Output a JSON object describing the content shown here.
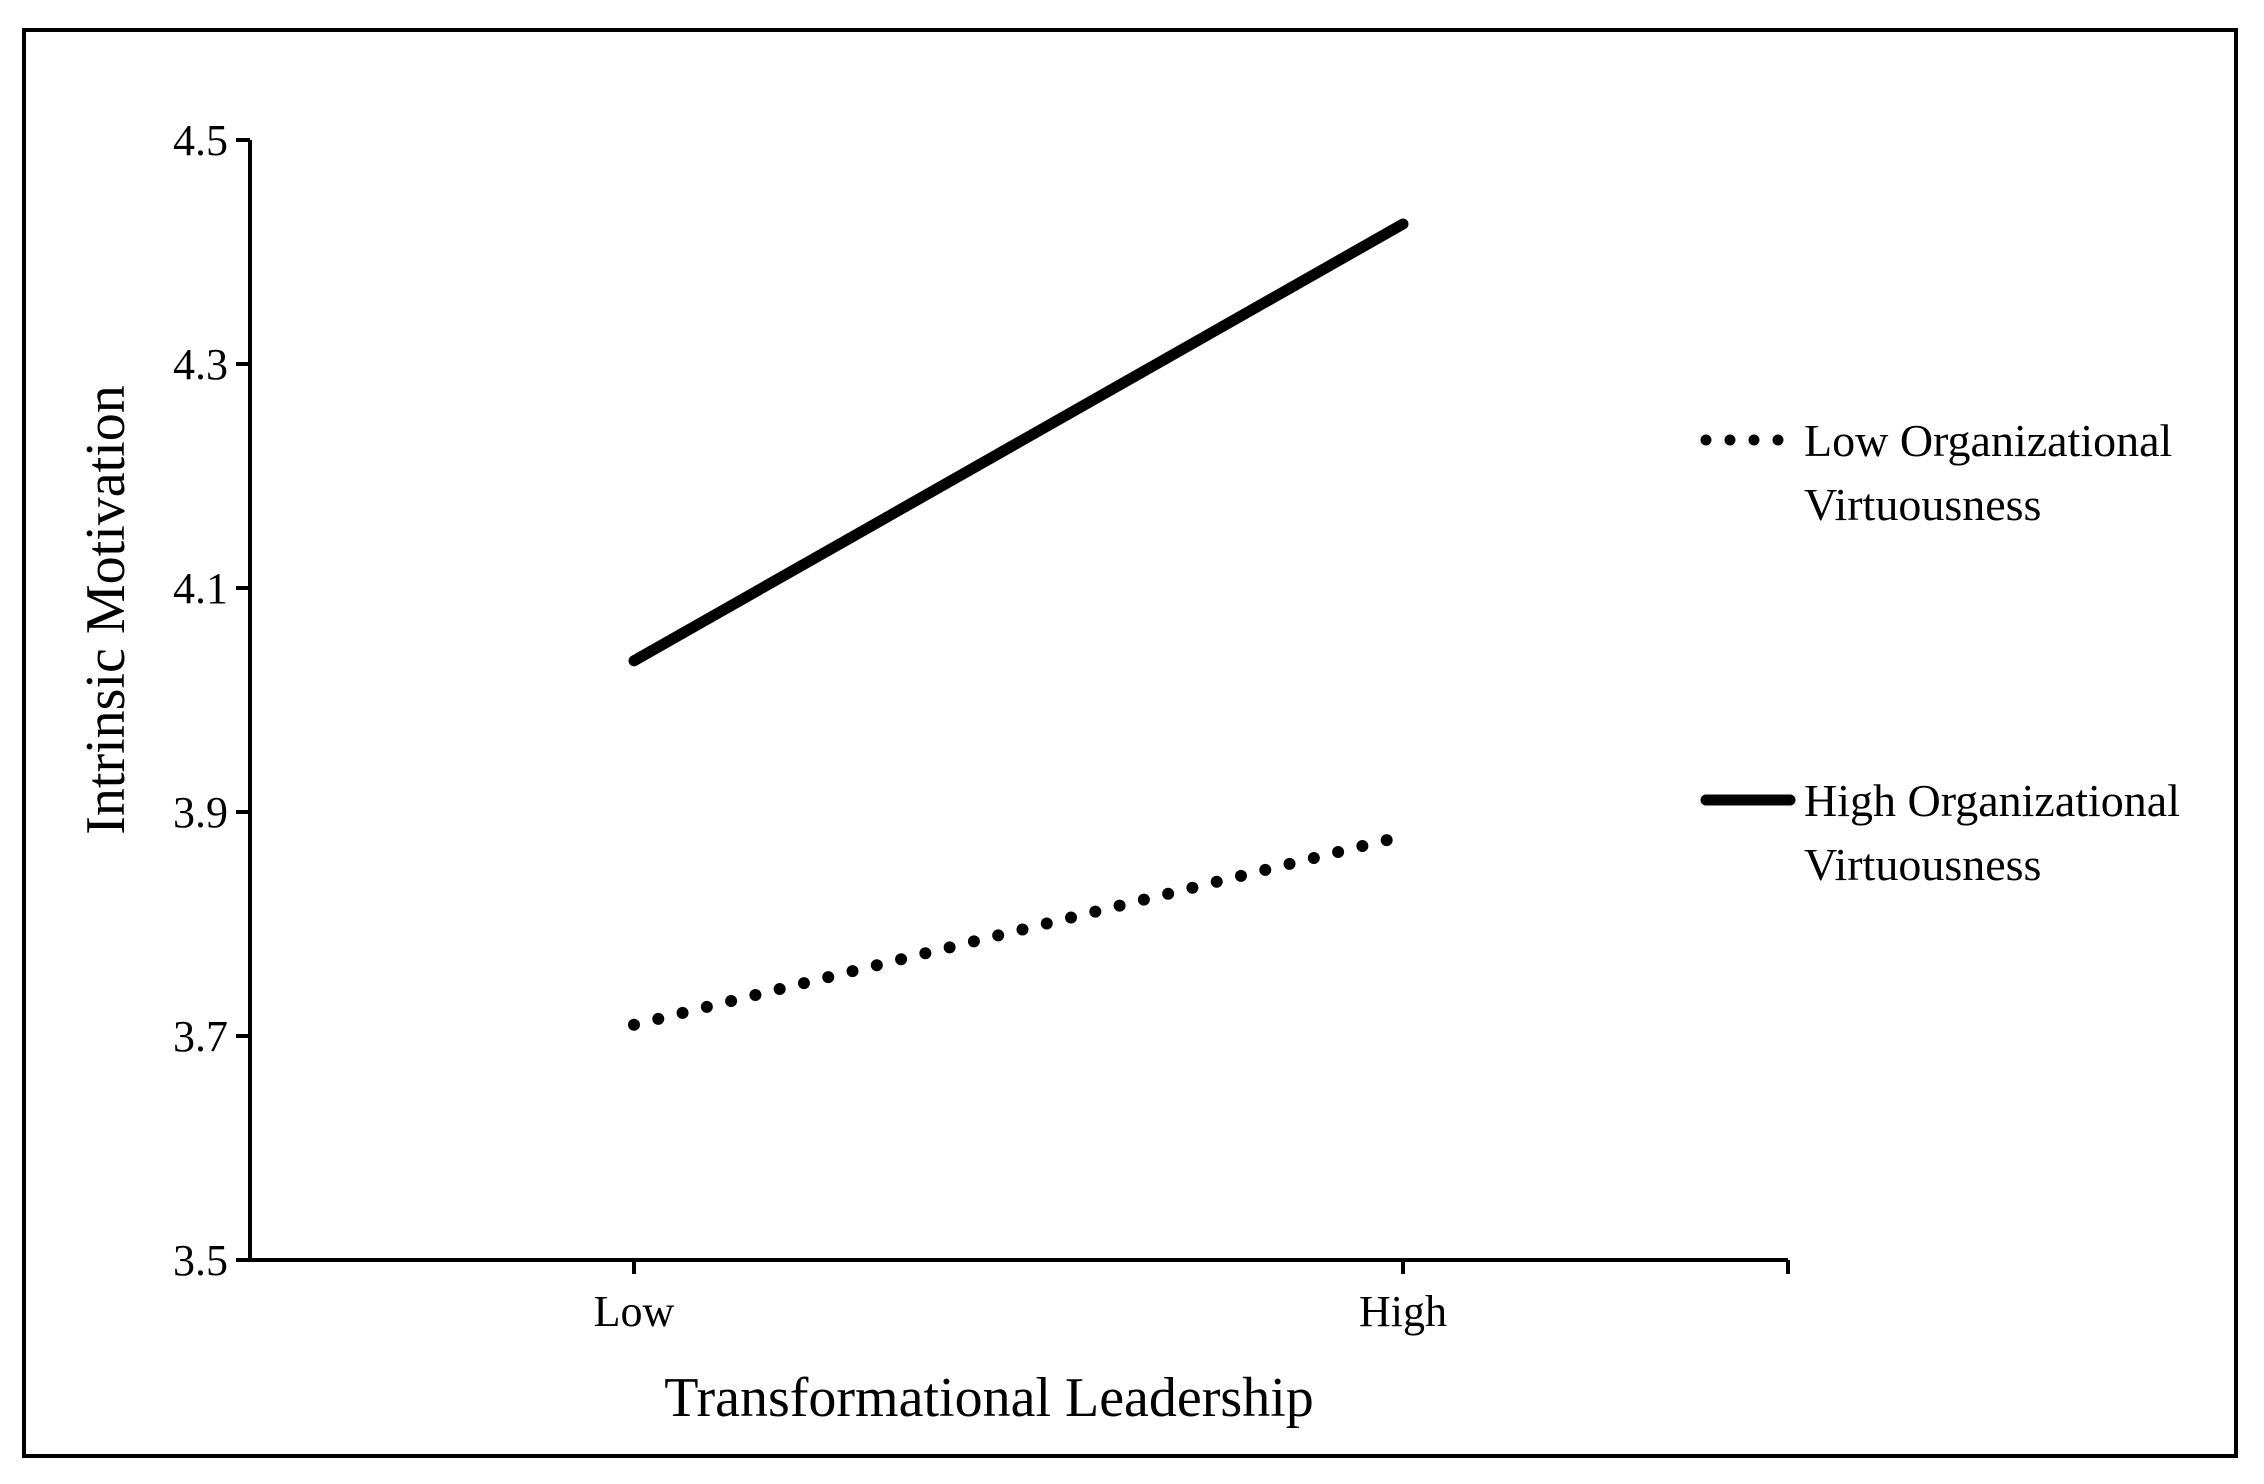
{
  "chart_data": {
    "type": "line",
    "title": "",
    "xlabel": "Transformational Leadership",
    "ylabel": "Intrinsic Motivation",
    "categories": [
      "Low",
      "High"
    ],
    "ylim": [
      3.5,
      4.5
    ],
    "yticks": [
      "3.5",
      "3.7",
      "3.9",
      "4.1",
      "4.3",
      "4.5"
    ],
    "grid": false,
    "legend_position": "right",
    "series": [
      {
        "name": "Low Organizational Virtuousness",
        "name_lines": [
          "Low Organizational",
          "Virtuousness"
        ],
        "values": [
          3.71,
          3.875
        ],
        "style": "dotted",
        "color": "#000000"
      },
      {
        "name": "High Organizational Virtuousness",
        "name_lines": [
          "High Organizational",
          "Virtuousness"
        ],
        "values": [
          4.035,
          4.425
        ],
        "style": "solid",
        "color": "#000000"
      }
    ]
  }
}
